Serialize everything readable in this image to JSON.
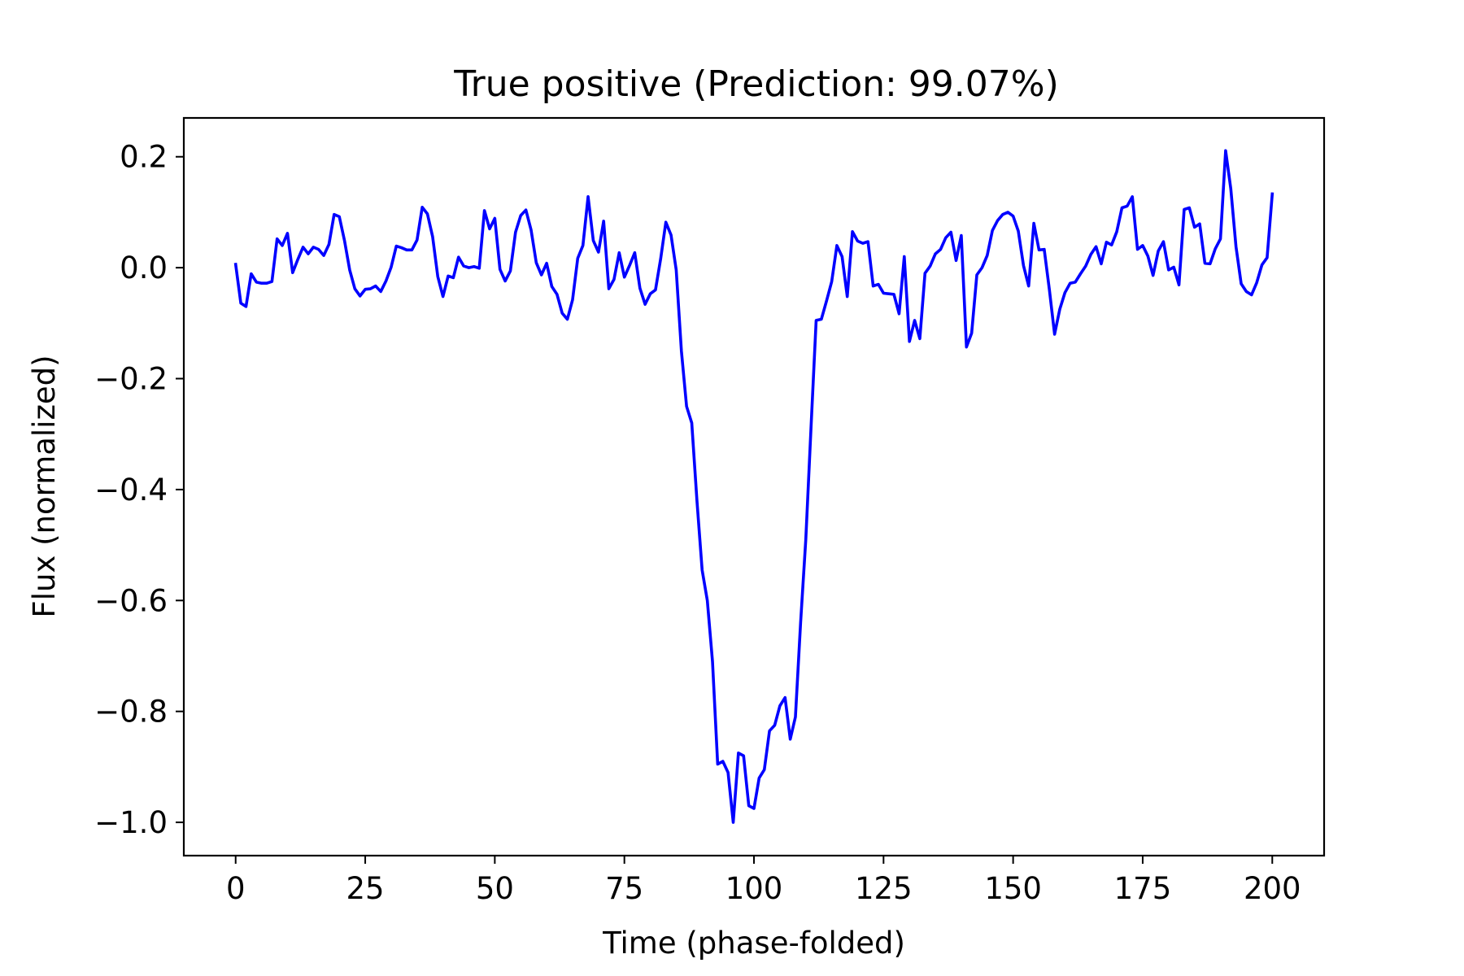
{
  "chart_data": {
    "type": "line",
    "title": "True positive (Prediction: 99.07%)",
    "xlabel": "Time (phase-folded)",
    "ylabel": "Flux (normalized)",
    "xlim": [
      -10,
      210
    ],
    "ylim": [
      -1.06,
      0.27
    ],
    "xticks": [
      0,
      25,
      50,
      75,
      100,
      125,
      150,
      175,
      200
    ],
    "xtick_labels": [
      "0",
      "25",
      "50",
      "75",
      "100",
      "125",
      "150",
      "175",
      "200"
    ],
    "yticks": [
      0.2,
      0.0,
      -0.2,
      -0.4,
      -0.6,
      -0.8,
      -1.0
    ],
    "ytick_labels": [
      "0.2",
      "0.0",
      "−0.2",
      "−0.4",
      "−0.6",
      "−0.8",
      "−1.0"
    ],
    "grid": false,
    "series": [
      {
        "color": "#0000ff",
        "x_start": 0,
        "x_step": 1,
        "values": [
          0.006,
          -0.064,
          -0.07,
          -0.011,
          -0.026,
          -0.028,
          -0.028,
          -0.025,
          0.052,
          0.04,
          0.062,
          -0.009,
          0.015,
          0.037,
          0.025,
          0.037,
          0.033,
          0.022,
          0.042,
          0.096,
          0.092,
          0.049,
          -0.004,
          -0.038,
          -0.051,
          -0.039,
          -0.038,
          -0.033,
          -0.043,
          -0.024,
          0.001,
          0.039,
          0.036,
          0.032,
          0.032,
          0.05,
          0.109,
          0.097,
          0.056,
          -0.016,
          -0.052,
          -0.015,
          -0.018,
          0.019,
          0.003,
          0.0,
          0.002,
          -0.001,
          0.103,
          0.07,
          0.089,
          -0.003,
          -0.024,
          -0.006,
          0.064,
          0.094,
          0.104,
          0.068,
          0.009,
          -0.013,
          0.008,
          -0.034,
          -0.048,
          -0.082,
          -0.093,
          -0.058,
          0.017,
          0.04,
          0.128,
          0.049,
          0.028,
          0.084,
          -0.038,
          -0.021,
          0.027,
          -0.017,
          0.004,
          0.027,
          -0.037,
          -0.066,
          -0.047,
          -0.04,
          0.016,
          0.082,
          0.059,
          -0.004,
          -0.15,
          -0.25,
          -0.28,
          -0.42,
          -0.545,
          -0.6,
          -0.71,
          -0.895,
          -0.89,
          -0.91,
          -1.0,
          -0.875,
          -0.88,
          -0.97,
          -0.975,
          -0.92,
          -0.905,
          -0.835,
          -0.825,
          -0.79,
          -0.775,
          -0.85,
          -0.81,
          -0.64,
          -0.49,
          -0.29,
          -0.095,
          -0.093,
          -0.06,
          -0.025,
          0.04,
          0.02,
          -0.052,
          0.065,
          0.048,
          0.044,
          0.047,
          -0.033,
          -0.03,
          -0.046,
          -0.047,
          -0.048,
          -0.083,
          0.02,
          -0.133,
          -0.095,
          -0.128,
          -0.01,
          0.003,
          0.025,
          0.033,
          0.054,
          0.064,
          0.013,
          0.058,
          -0.143,
          -0.118,
          -0.013,
          0.0,
          0.022,
          0.067,
          0.085,
          0.096,
          0.1,
          0.093,
          0.066,
          0.004,
          -0.033,
          0.08,
          0.032,
          0.033,
          -0.04,
          -0.12,
          -0.075,
          -0.045,
          -0.028,
          -0.026,
          -0.011,
          0.003,
          0.024,
          0.038,
          0.007,
          0.046,
          0.041,
          0.065,
          0.108,
          0.111,
          0.128,
          0.033,
          0.04,
          0.021,
          -0.014,
          0.03,
          0.047,
          -0.004,
          0.001,
          -0.031,
          0.105,
          0.108,
          0.073,
          0.079,
          0.008,
          0.007,
          0.034,
          0.052,
          0.211,
          0.142,
          0.038,
          -0.029,
          -0.043,
          -0.049,
          -0.027,
          0.005,
          0.018,
          0.133
        ]
      }
    ]
  }
}
